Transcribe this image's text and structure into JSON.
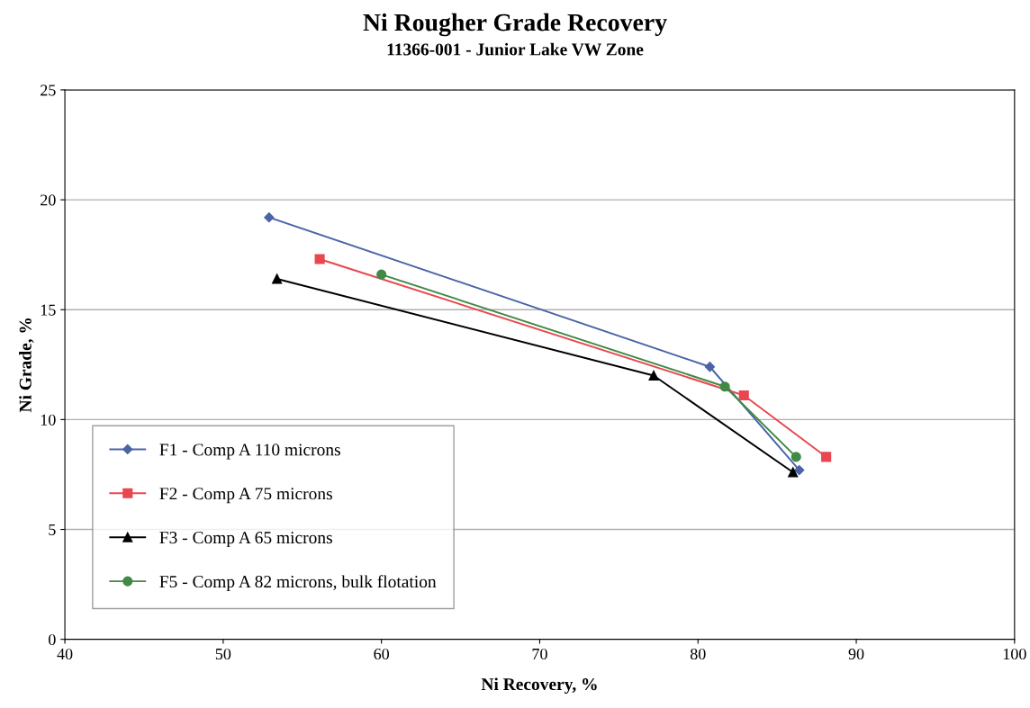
{
  "chart_data": {
    "type": "line",
    "title": "Ni Rougher Grade Recovery",
    "subtitle": "11366-001 - Junior Lake VW Zone",
    "xlabel": "Ni Recovery, %",
    "ylabel": "Ni Grade, %",
    "xlim": [
      40,
      100
    ],
    "xticks": [
      40,
      50,
      60,
      70,
      80,
      90,
      100
    ],
    "ylim": [
      0,
      25
    ],
    "yticks": [
      0,
      5,
      10,
      15,
      20,
      25
    ],
    "grid": "y",
    "legend": "bottom left",
    "line_style": "solid",
    "series": [
      {
        "name": "F1 - Comp A 110 microns",
        "color": "#4a64a8",
        "marker": "diamond",
        "x": [
          52.9,
          80.75,
          86.4
        ],
        "values": [
          19.2,
          12.4,
          7.7
        ]
      },
      {
        "name": "F2 - Comp A 75 microns",
        "color": "#e8474f",
        "marker": "square",
        "x": [
          56.1,
          82.9,
          88.1
        ],
        "values": [
          17.3,
          11.1,
          8.3
        ]
      },
      {
        "name": "F3 - Comp A 65 microns",
        "color": "#000000",
        "marker": "triangle",
        "x": [
          53.4,
          77.2,
          86.0
        ],
        "values": [
          16.4,
          12.0,
          7.6
        ]
      },
      {
        "name": "F5 - Comp A 82 microns, bulk flotation",
        "color": "#3f8a45",
        "marker": "circle",
        "x": [
          60.0,
          81.7,
          86.2
        ],
        "values": [
          16.6,
          11.5,
          8.3
        ]
      }
    ]
  }
}
